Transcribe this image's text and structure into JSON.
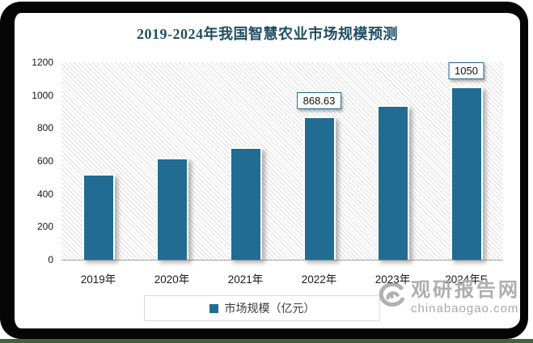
{
  "title": {
    "text": "2019-2024年我国智慧农业市场规模预测"
  },
  "chart_data": {
    "type": "bar",
    "title": "2019-2024年我国智慧农业市场规模预测",
    "categories": [
      "2019年",
      "2020年",
      "2021年",
      "2022年",
      "2023年",
      "2024年E"
    ],
    "series": [
      {
        "name": "市场规模（亿元）",
        "values": [
          523,
          621,
          683,
          868.63,
          940,
          1050
        ]
      }
    ],
    "point_labels": [
      "",
      "",
      "",
      "868.63",
      "",
      "1050"
    ],
    "xlabel": "",
    "ylabel": "",
    "ylim": [
      0,
      1200
    ],
    "yticks": [
      0,
      200,
      400,
      600,
      800,
      1000,
      1200
    ],
    "grid": false,
    "plot_background": "diagonal-hatch",
    "legend": {
      "label": "市场规模（亿元）",
      "position": "bottom"
    }
  },
  "colors": {
    "title": "#1f4e63",
    "bar": "#206c92",
    "axis_line": "#a0a0a0",
    "label_box_border": "#1f6587",
    "legend_border": "#d9d9d9",
    "watermark": "#b0b0b0",
    "frame": "#050505",
    "bottom_strip": "#44603f"
  },
  "watermark": {
    "name": "观研报告网",
    "domain": "chinabaogao.com"
  }
}
